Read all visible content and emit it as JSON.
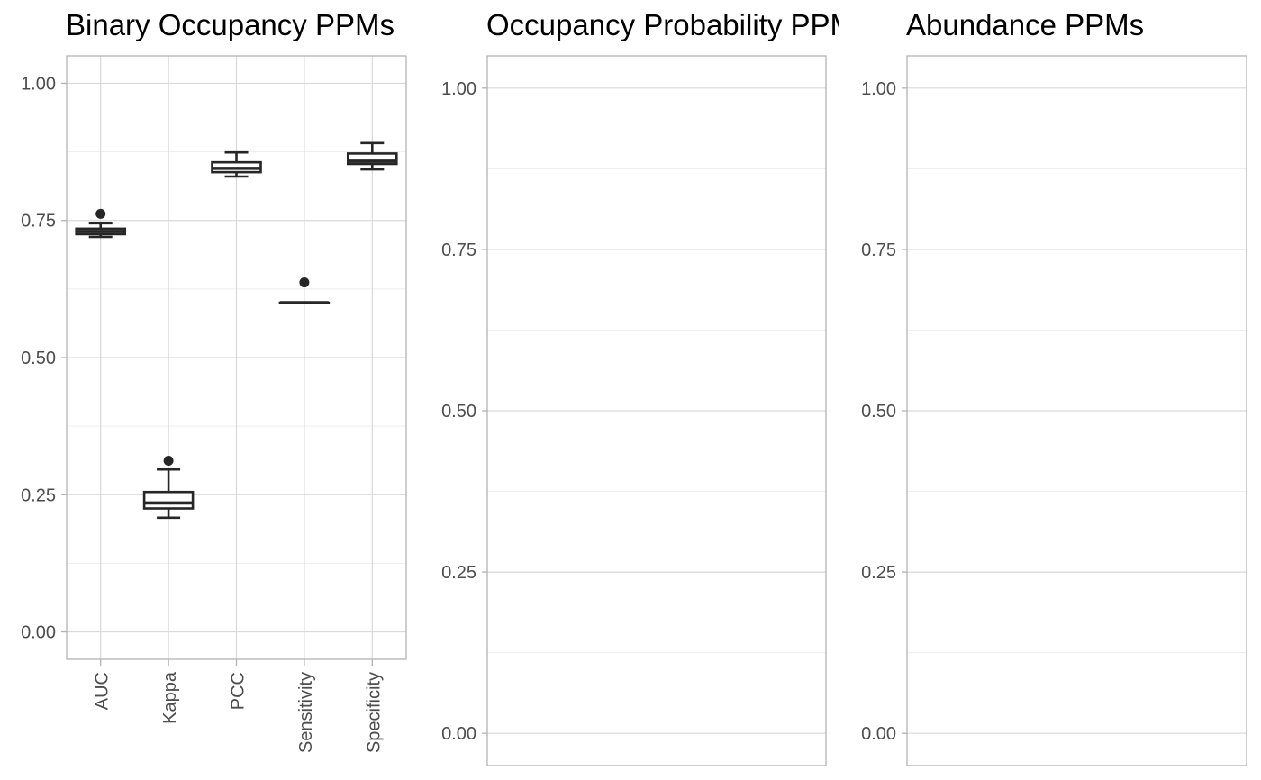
{
  "chart_data": [
    {
      "type": "box",
      "title": "Binary Occupancy PPMs",
      "xlabel": "",
      "ylabel": "",
      "ylim": [
        -0.05,
        1.05
      ],
      "yticks": [
        "0.00",
        "0.25",
        "0.50",
        "0.75",
        "1.00"
      ],
      "categories": [
        "AUC",
        "Kappa",
        "PCC",
        "Sensitivity",
        "Specificity"
      ],
      "boxes": [
        {
          "category": "AUC",
          "whisker_low": 0.72,
          "q1": 0.725,
          "median": 0.73,
          "q3": 0.735,
          "whisker_high": 0.745,
          "outliers": [
            0.762
          ]
        },
        {
          "category": "Kappa",
          "whisker_low": 0.208,
          "q1": 0.225,
          "median": 0.235,
          "q3": 0.255,
          "whisker_high": 0.296,
          "outliers": [
            0.312
          ]
        },
        {
          "category": "PCC",
          "whisker_low": 0.83,
          "q1": 0.838,
          "median": 0.845,
          "q3": 0.856,
          "whisker_high": 0.874,
          "outliers": []
        },
        {
          "category": "Sensitivity",
          "whisker_low": 0.6,
          "q1": 0.6,
          "median": 0.6,
          "q3": 0.6,
          "whisker_high": 0.6,
          "outliers": [
            0.637
          ]
        },
        {
          "category": "Specificity",
          "whisker_low": 0.843,
          "q1": 0.853,
          "median": 0.858,
          "q3": 0.872,
          "whisker_high": 0.891,
          "outliers": []
        }
      ],
      "grid": true
    },
    {
      "type": "box",
      "title": "Occupancy Probability PPMs",
      "xlabel": "",
      "ylabel": "",
      "ylim": [
        -0.05,
        1.05
      ],
      "yticks": [
        "0.00",
        "0.25",
        "0.50",
        "0.75",
        "1.00"
      ],
      "categories": [],
      "boxes": [],
      "grid": true
    },
    {
      "type": "box",
      "title": "Abundance PPMs",
      "xlabel": "",
      "ylabel": "",
      "ylim": [
        -0.05,
        1.05
      ],
      "yticks": [
        "0.00",
        "0.25",
        "0.50",
        "0.75",
        "1.00"
      ],
      "categories": [],
      "boxes": [],
      "grid": true
    }
  ]
}
